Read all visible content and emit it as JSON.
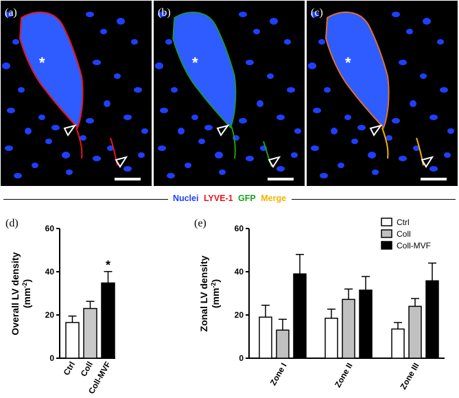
{
  "panels": [
    {
      "label": "(a)",
      "channel": "lyve1"
    },
    {
      "label": "(b)",
      "channel": "gfp"
    },
    {
      "label": "(c)",
      "channel": "merge"
    }
  ],
  "marker_star": "*",
  "legend": {
    "items": [
      {
        "text": "Nuclei",
        "color": "#1f3fff"
      },
      {
        "text": "LYVE-1",
        "color": "#e8141c"
      },
      {
        "text": "GFP",
        "color": "#1aa21a"
      },
      {
        "text": "Merge",
        "color": "#f0b400"
      }
    ]
  },
  "colors": {
    "ctrl": "#ffffff",
    "coll": "#c0c0c0",
    "coll_mvf": "#000000",
    "nuclei": "#1f3fff",
    "vessel_fill": "#3a66ff"
  },
  "chart_data": [
    {
      "type": "bar",
      "panel_label": "(d)",
      "categories": [
        "Ctrl",
        "Coll",
        "Coll-MVF"
      ],
      "values": [
        16.5,
        23,
        34.8
      ],
      "errors": [
        3,
        3.3,
        5.3
      ],
      "fills": [
        "#ffffff",
        "#c8c8c8",
        "#000000"
      ],
      "ylabel_line1": "Overall LV density",
      "ylabel_line2": "(mm",
      "ylabel_sup": "-2",
      "ylabel_close": ")",
      "ylim": [
        0,
        60
      ],
      "yticks": [
        0,
        20,
        40,
        60
      ],
      "significance": [
        {
          "category": "Coll-MVF",
          "text": "*"
        }
      ]
    },
    {
      "type": "bar",
      "panel_label": "(e)",
      "categories": [
        "Zone I",
        "Zone II",
        "Zone III"
      ],
      "series": [
        {
          "name": "Ctrl",
          "values": [
            19,
            18.5,
            13.5
          ],
          "errors": [
            5.5,
            4.2,
            3
          ],
          "fill": "#ffffff"
        },
        {
          "name": "Coll",
          "values": [
            13,
            27.2,
            24
          ],
          "errors": [
            5,
            4.8,
            3.6
          ],
          "fill": "#c0c0c0"
        },
        {
          "name": "Coll-MVF",
          "values": [
            39,
            31.5,
            35.8
          ],
          "errors": [
            9,
            6.3,
            8.2
          ],
          "fill": "#000000"
        }
      ],
      "ylabel_line1": "Zonal LV density",
      "ylabel_line2": "(mm",
      "ylabel_sup": "-2",
      "ylabel_close": ")",
      "ylim": [
        0,
        60
      ],
      "yticks": [
        0,
        20,
        40,
        60
      ],
      "legend_position": "top-right"
    }
  ]
}
